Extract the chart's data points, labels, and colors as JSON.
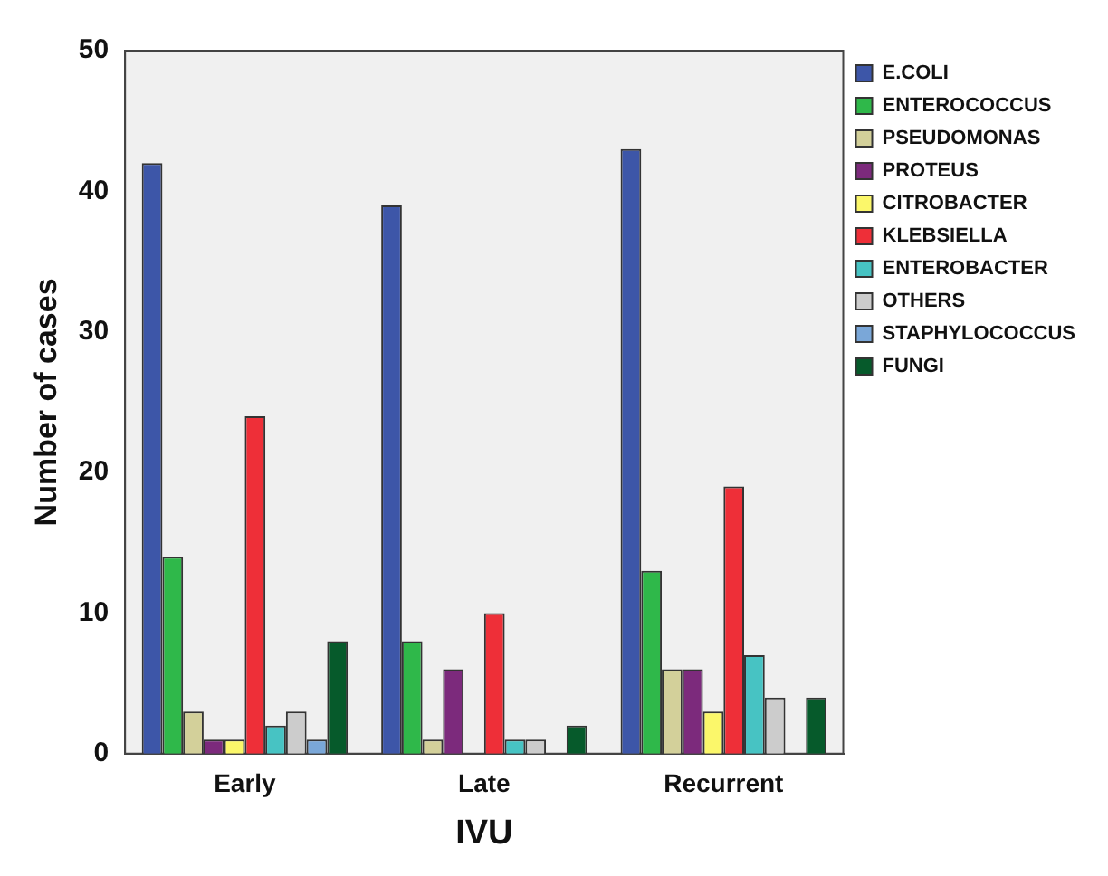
{
  "chart_data": {
    "type": "bar",
    "xlabel": "IVU",
    "ylabel": "Number of cases",
    "categories": [
      "Early",
      "Late",
      "Recurrent"
    ],
    "series": [
      {
        "name": "E.COLI",
        "color": "#3d56a8",
        "values": [
          42,
          39,
          43
        ]
      },
      {
        "name": "ENTEROCOCCUS",
        "color": "#2fb84a",
        "values": [
          14,
          8,
          13
        ]
      },
      {
        "name": "PSEUDOMONAS",
        "color": "#d3d09a",
        "values": [
          3,
          1,
          6
        ]
      },
      {
        "name": "PROTEUS",
        "color": "#7c2a7c",
        "values": [
          1,
          6,
          6
        ]
      },
      {
        "name": "CITROBACTER",
        "color": "#fbf76a",
        "values": [
          1,
          0,
          3
        ]
      },
      {
        "name": "KLEBSIELLA",
        "color": "#ee2f38",
        "values": [
          24,
          10,
          19
        ]
      },
      {
        "name": "ENTEROBACTER",
        "color": "#47c3c3",
        "values": [
          2,
          1,
          7
        ]
      },
      {
        "name": "OTHERS",
        "color": "#cccccc",
        "values": [
          3,
          1,
          4
        ]
      },
      {
        "name": "STAPHYLOCOCCUS",
        "color": "#7aa7d8",
        "values": [
          1,
          0,
          0
        ]
      },
      {
        "name": "FUNGI",
        "color": "#065a2b",
        "values": [
          8,
          2,
          4
        ]
      }
    ],
    "ylim": [
      0,
      50
    ],
    "yticks": [
      0,
      10,
      20,
      30,
      40,
      50
    ],
    "grid": false,
    "legend": "top right"
  }
}
